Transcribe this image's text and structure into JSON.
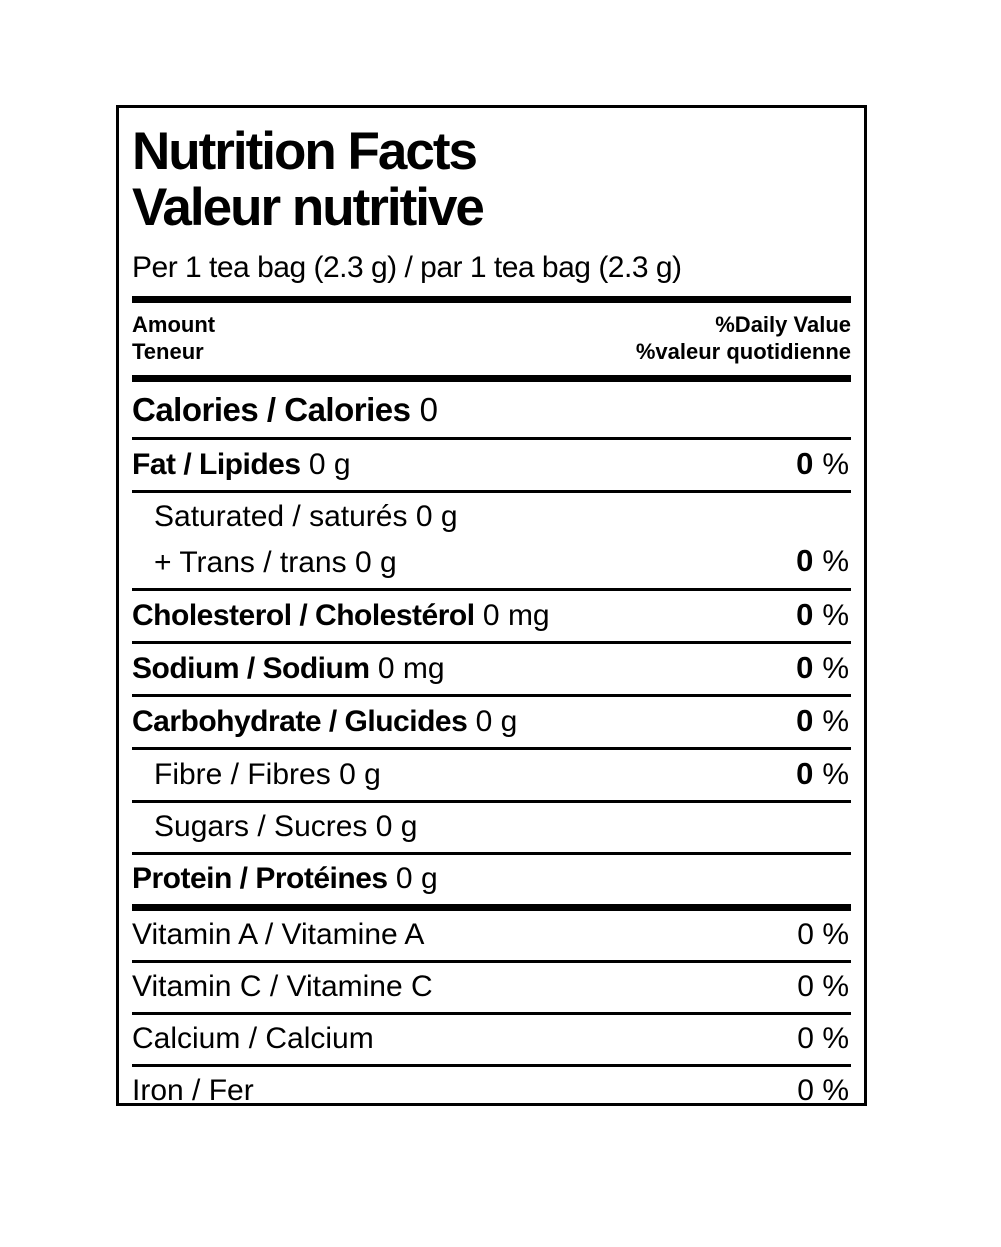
{
  "colors": {
    "text": "#000000",
    "background": "#ffffff",
    "border": "#000000"
  },
  "label": {
    "title_en": "Nutrition Facts",
    "title_fr": "Valeur nutritive",
    "serving": "Per 1 tea bag (2.3 g) / par 1 tea bag (2.3 g)",
    "columns": {
      "amount_en": "Amount",
      "amount_fr": "Teneur",
      "daily_value_en": "%Daily Value",
      "daily_value_fr": "%valeur quotidienne"
    },
    "calories": {
      "label": "Calories / Calories",
      "value": "0"
    },
    "nutrients": {
      "fat": {
        "label": "Fat / Lipides",
        "amount": "0 g",
        "dv": "0",
        "unit": "%"
      },
      "saturated": {
        "label": "Saturated / saturés",
        "amount": "0 g"
      },
      "trans": {
        "label": "+ Trans / trans",
        "amount": "0 g"
      },
      "sat_trans_dv": {
        "dv": "0",
        "unit": "%"
      },
      "cholesterol": {
        "label": "Cholesterol / Cholestérol",
        "amount": "0 mg",
        "dv": "0",
        "unit": "%"
      },
      "sodium": {
        "label": "Sodium / Sodium",
        "amount": "0 mg",
        "dv": "0",
        "unit": "%"
      },
      "carbohydrate": {
        "label": "Carbohydrate / Glucides",
        "amount": "0 g",
        "dv": "0",
        "unit": "%"
      },
      "fibre": {
        "label": "Fibre / Fibres",
        "amount": "0 g",
        "dv": "0",
        "unit": "%"
      },
      "sugars": {
        "label": "Sugars / Sucres",
        "amount": "0 g"
      },
      "protein": {
        "label": "Protein / Protéines",
        "amount": "0 g"
      }
    },
    "micronutrients": {
      "vitamin_a": {
        "label": "Vitamin A / Vitamine A",
        "dv": "0 %"
      },
      "vitamin_c": {
        "label": "Vitamin C / Vitamine C",
        "dv": "0 %"
      },
      "calcium": {
        "label": "Calcium / Calcium",
        "dv": "0 %"
      },
      "iron": {
        "label": "Iron / Fer",
        "dv": "0 %"
      }
    }
  }
}
